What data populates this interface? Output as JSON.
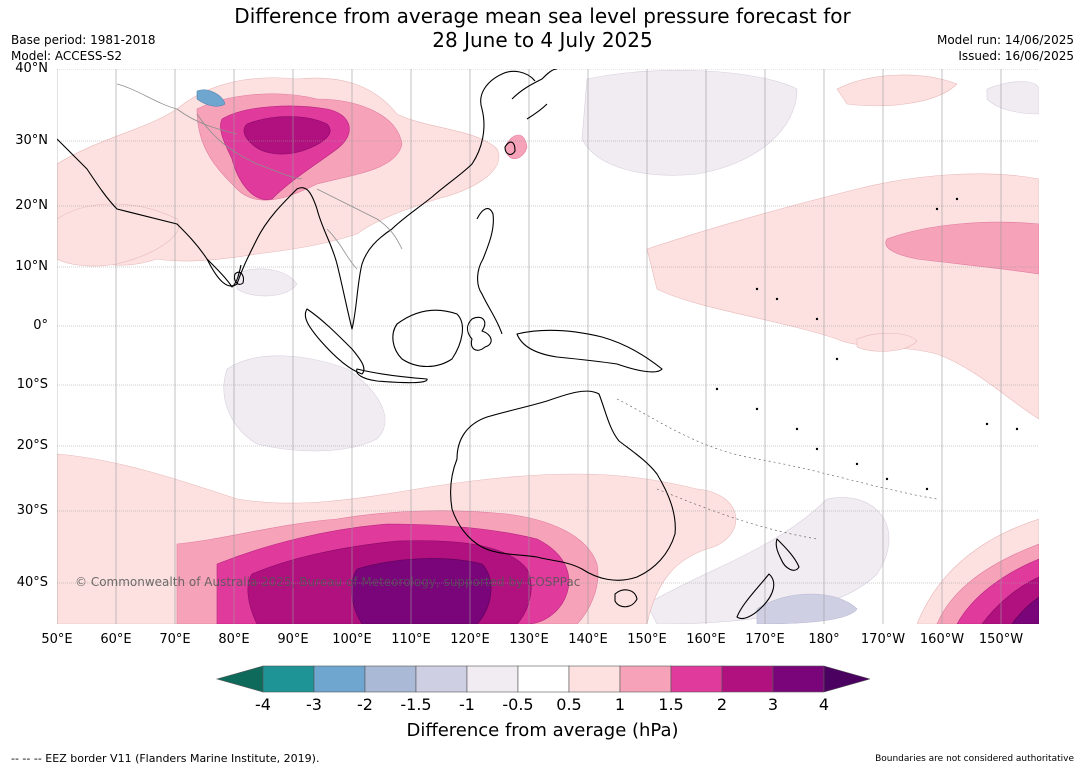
{
  "title_line1": "Difference from average mean sea level pressure forecast for",
  "title_line2": "28 June to 4 July 2025",
  "meta_left": {
    "base_period": "Base period: 1981-2018",
    "model": "Model: ACCESS-S2"
  },
  "meta_right": {
    "model_run": "Model run: 14/06/2025",
    "issued": "Issued: 16/06/2025"
  },
  "lat_labels": [
    "40°N",
    "30°N",
    "20°N",
    "10°N",
    "0°",
    "10°S",
    "20°S",
    "30°S",
    "40°S"
  ],
  "lon_labels": [
    "50°E",
    "60°E",
    "70°E",
    "80°E",
    "90°E",
    "100°E",
    "110°E",
    "120°E",
    "130°E",
    "140°E",
    "150°E",
    "160°E",
    "170°E",
    "180°",
    "170°W",
    "160°W",
    "150°W"
  ],
  "copyright": "© Commonwealth of Australia 2025, Bureau of Meteorology, supported by COSPPac",
  "colorbar": {
    "title": "Difference from average (hPa)",
    "tick_labels": [
      "-4",
      "-3",
      "-2",
      "-1.5",
      "-1",
      "-0.5",
      "0.5",
      "1",
      "1.5",
      "2",
      "3",
      "4"
    ],
    "colors": [
      "#0e6b5c",
      "#1e9497",
      "#6fa6cf",
      "#a9b9d6",
      "#cfcfe3",
      "#f1ecf2",
      "#ffffff",
      "#fde1e1",
      "#f6a3b9",
      "#e03a9c",
      "#b0117f",
      "#7a0479",
      "#4b0160"
    ]
  },
  "eez_note": "-- -- -- EEZ border V11 (Flanders Marine Institute, 2019).",
  "authority_note": "Boundaries are not considered authoritative"
}
